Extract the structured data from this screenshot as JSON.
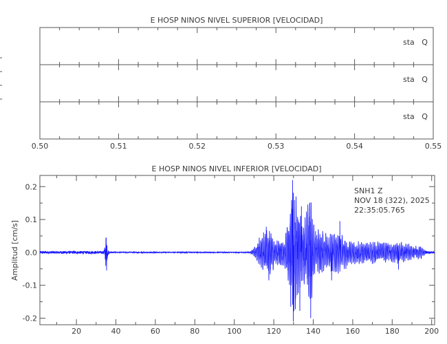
{
  "colors": {
    "trace": "#1a1aff",
    "frame": "#555555",
    "text": "#3a3a3a"
  },
  "chart_data": [
    {
      "type": "line",
      "title": "E HOSP NINOS NIVEL SUPERIOR [VELOCIDAD]",
      "xlim": [
        0.5,
        0.55
      ],
      "x_ticks": [
        "0.50",
        "0.51",
        "0.52",
        "0.53",
        "0.54",
        "0.55"
      ],
      "x_tick_values": [
        0.5,
        0.51,
        0.52,
        0.53,
        0.54,
        0.55
      ],
      "x_minor_step": 0.0025,
      "traces": [
        {
          "label": "sta   Q",
          "values": []
        },
        {
          "label": "sta   Q",
          "values": []
        },
        {
          "label": "sta   Q",
          "values": []
        }
      ]
    },
    {
      "type": "line",
      "title": "E HOSP NINOS NIVEL INFERIOR [VELOCIDAD]",
      "xlabel": "",
      "ylabel": "Amplitud  [cm/s]",
      "xlim": [
        1.5,
        201.5
      ],
      "ylim": [
        -0.22,
        0.234
      ],
      "x_ticks": [
        "20",
        "40",
        "60",
        "80",
        "100",
        "120",
        "140",
        "160",
        "180",
        "200"
      ],
      "x_tick_values": [
        20,
        40,
        60,
        80,
        100,
        120,
        140,
        160,
        180,
        200
      ],
      "x_minor_step": 10,
      "y_ticks": [
        "-0.2",
        "-0.1",
        "0.0",
        "0.1",
        "0.2"
      ],
      "y_tick_values": [
        -0.2,
        -0.1,
        0.0,
        0.1,
        0.2
      ],
      "y_minor_step": 0.05,
      "annotation": [
        "SNH1   Z",
        "NOV 18 (322), 2025",
        "22:35:05.765"
      ],
      "series": [
        {
          "name": "SNH1 Z",
          "envelope": [
            [
              1.5,
              0.004
            ],
            [
              33.5,
              0.004
            ],
            [
              34.5,
              0.02
            ],
            [
              35,
              0.05
            ],
            [
              35.6,
              0.02
            ],
            [
              36.5,
              0.003
            ],
            [
              40,
              0.0015
            ],
            [
              108,
              0.0015
            ],
            [
              110,
              0.015
            ],
            [
              112,
              0.035
            ],
            [
              114,
              0.07
            ],
            [
              118,
              0.075
            ],
            [
              122,
              0.04
            ],
            [
              126,
              0.06
            ],
            [
              128,
              0.13
            ],
            [
              129.5,
              0.21
            ],
            [
              132,
              0.16
            ],
            [
              135,
              0.11
            ],
            [
              138.5,
              0.17
            ],
            [
              141,
              0.08
            ],
            [
              148,
              0.06
            ],
            [
              154,
              0.07
            ],
            [
              158,
              0.04
            ],
            [
              165,
              0.035
            ],
            [
              183,
              0.035
            ],
            [
              190,
              0.025
            ],
            [
              195,
              0.02
            ],
            [
              197,
              0.004
            ],
            [
              201.5,
              0.003
            ]
          ],
          "peaks": [
            [
              35.1,
              0.045
            ],
            [
              35.3,
              -0.055
            ],
            [
              116.2,
              0.078
            ],
            [
              117.5,
              -0.085
            ],
            [
              128.6,
              -0.165
            ],
            [
              129.5,
              0.22
            ],
            [
              129.9,
              -0.21
            ],
            [
              131.3,
              0.17
            ],
            [
              133.2,
              -0.178
            ],
            [
              134.0,
              0.14
            ],
            [
              138.3,
              0.15
            ],
            [
              138.7,
              -0.2
            ],
            [
              149.3,
              -0.085
            ],
            [
              153.5,
              0.095
            ],
            [
              183.2,
              -0.052
            ]
          ]
        }
      ]
    }
  ]
}
